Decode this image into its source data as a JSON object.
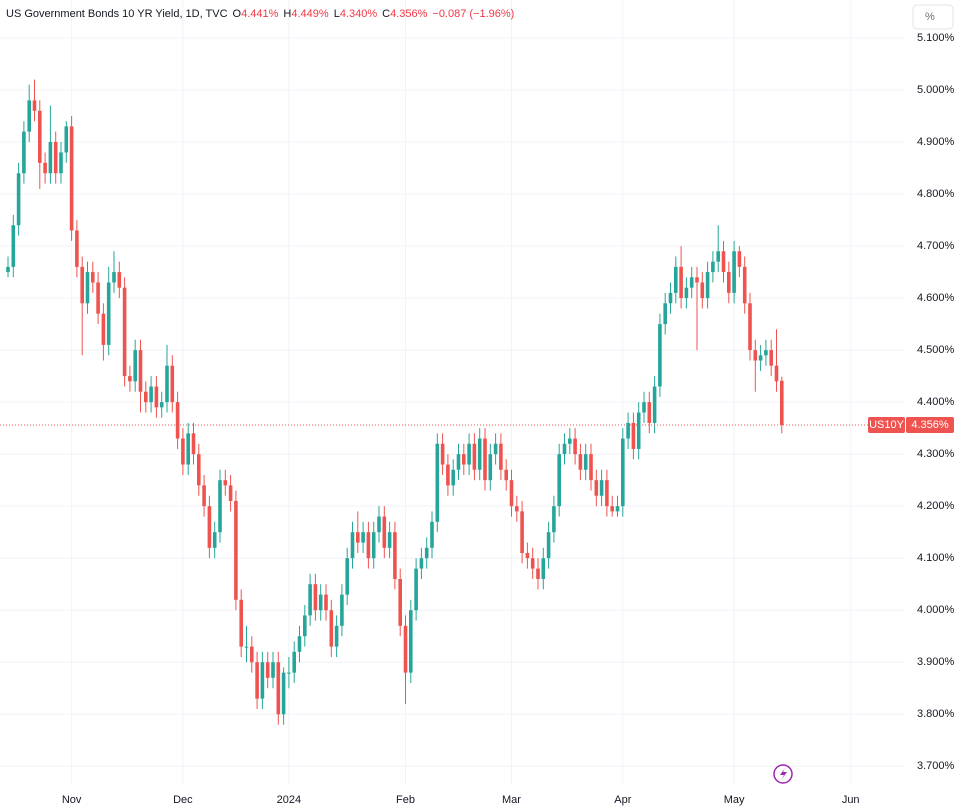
{
  "chart_data": {
    "type": "candlestick",
    "header": {
      "title": "US Government Bonds 10 YR Yield, 1D, TVC",
      "fields": [
        {
          "key": "O",
          "value": "4.441%"
        },
        {
          "key": "H",
          "value": "4.449%"
        },
        {
          "key": "L",
          "value": "4.340%"
        },
        {
          "key": "C",
          "value": "4.356%"
        }
      ],
      "change": "−0.087 (−1.96%)"
    },
    "unit_button": "%",
    "symbol_tag": "US10Y",
    "last_price_label": "4.356%",
    "up_color": "#26a69a",
    "down_color": "#ef5350",
    "grid": true,
    "ylim": [
      3.664,
      5.173
    ],
    "yticks": [
      {
        "value": 3.7,
        "label": "3.700%"
      },
      {
        "value": 3.8,
        "label": "3.800%"
      },
      {
        "value": 3.9,
        "label": "3.900%"
      },
      {
        "value": 4.0,
        "label": "4.000%"
      },
      {
        "value": 4.1,
        "label": "4.100%"
      },
      {
        "value": 4.2,
        "label": "4.200%"
      },
      {
        "value": 4.3,
        "label": "4.300%"
      },
      {
        "value": 4.4,
        "label": "4.400%"
      },
      {
        "value": 4.5,
        "label": "4.500%"
      },
      {
        "value": 4.6,
        "label": "4.600%"
      },
      {
        "value": 4.7,
        "label": "4.700%"
      },
      {
        "value": 4.8,
        "label": "4.800%"
      },
      {
        "value": 4.9,
        "label": "4.900%"
      },
      {
        "value": 5.0,
        "label": "5.000%"
      },
      {
        "value": 5.1,
        "label": "5.100%"
      }
    ],
    "categories": [
      null,
      null,
      null,
      null,
      null,
      null,
      null,
      null,
      null,
      null,
      null,
      null,
      "Nov",
      null,
      null,
      null,
      null,
      null,
      null,
      null,
      null,
      null,
      null,
      null,
      null,
      null,
      null,
      null,
      null,
      null,
      null,
      null,
      null,
      "Dec",
      null,
      null,
      null,
      null,
      null,
      null,
      null,
      null,
      null,
      null,
      null,
      null,
      null,
      null,
      null,
      null,
      null,
      null,
      null,
      "2024",
      null,
      null,
      null,
      null,
      null,
      null,
      null,
      null,
      null,
      null,
      null,
      null,
      null,
      null,
      null,
      null,
      null,
      null,
      null,
      null,
      null,
      "Feb",
      null,
      null,
      null,
      null,
      null,
      null,
      null,
      null,
      null,
      null,
      null,
      null,
      null,
      null,
      null,
      null,
      null,
      null,
      null,
      "Mar",
      null,
      null,
      null,
      null,
      null,
      null,
      null,
      null,
      null,
      null,
      null,
      null,
      null,
      null,
      null,
      null,
      null,
      null,
      null,
      null,
      "Apr",
      null,
      null,
      null,
      null,
      null,
      null,
      null,
      null,
      null,
      null,
      null,
      null,
      null,
      null,
      null,
      null,
      null,
      null,
      null,
      null,
      "May",
      null,
      null,
      null,
      null,
      null,
      null,
      null,
      null,
      null,
      null,
      null,
      null,
      null,
      null,
      null,
      null,
      null,
      null,
      null,
      null,
      null,
      "Jun"
    ],
    "ohlc": [
      [
        4.65,
        4.68,
        4.64,
        4.66
      ],
      [
        4.66,
        4.76,
        4.64,
        4.74
      ],
      [
        4.74,
        4.86,
        4.72,
        4.84
      ],
      [
        4.84,
        4.94,
        4.82,
        4.92
      ],
      [
        4.92,
        5.01,
        4.9,
        4.98
      ],
      [
        4.98,
        5.02,
        4.94,
        4.96
      ],
      [
        4.96,
        4.98,
        4.81,
        4.86
      ],
      [
        4.86,
        4.88,
        4.82,
        4.84
      ],
      [
        4.84,
        4.97,
        4.82,
        4.9
      ],
      [
        4.9,
        4.92,
        4.82,
        4.84
      ],
      [
        4.84,
        4.9,
        4.82,
        4.88
      ],
      [
        4.88,
        4.94,
        4.86,
        4.93
      ],
      [
        4.93,
        4.95,
        4.71,
        4.73
      ],
      [
        4.73,
        4.75,
        4.64,
        4.66
      ],
      [
        4.66,
        4.68,
        4.49,
        4.59
      ],
      [
        4.59,
        4.67,
        4.57,
        4.65
      ],
      [
        4.65,
        4.67,
        4.61,
        4.63
      ],
      [
        4.63,
        4.65,
        4.55,
        4.57
      ],
      [
        4.57,
        4.59,
        4.48,
        4.51
      ],
      [
        4.51,
        4.66,
        4.49,
        4.63
      ],
      [
        4.63,
        4.69,
        4.61,
        4.65
      ],
      [
        4.65,
        4.67,
        4.6,
        4.62
      ],
      [
        4.62,
        4.64,
        4.43,
        4.45
      ],
      [
        4.45,
        4.47,
        4.42,
        4.44
      ],
      [
        4.44,
        4.52,
        4.42,
        4.5
      ],
      [
        4.5,
        4.52,
        4.38,
        4.42
      ],
      [
        4.42,
        4.44,
        4.38,
        4.4
      ],
      [
        4.4,
        4.45,
        4.38,
        4.43
      ],
      [
        4.43,
        4.45,
        4.37,
        4.39
      ],
      [
        4.39,
        4.42,
        4.37,
        4.4
      ],
      [
        4.4,
        4.51,
        4.38,
        4.47
      ],
      [
        4.47,
        4.49,
        4.38,
        4.4
      ],
      [
        4.4,
        4.42,
        4.31,
        4.33
      ],
      [
        4.33,
        4.35,
        4.26,
        4.28
      ],
      [
        4.28,
        4.36,
        4.26,
        4.34
      ],
      [
        4.34,
        4.36,
        4.28,
        4.3
      ],
      [
        4.3,
        4.32,
        4.22,
        4.24
      ],
      [
        4.24,
        4.26,
        4.18,
        4.2
      ],
      [
        4.2,
        4.22,
        4.1,
        4.12
      ],
      [
        4.12,
        4.17,
        4.1,
        4.15
      ],
      [
        4.15,
        4.27,
        4.13,
        4.25
      ],
      [
        4.25,
        4.27,
        4.22,
        4.24
      ],
      [
        4.24,
        4.26,
        4.19,
        4.21
      ],
      [
        4.21,
        4.23,
        4.0,
        4.02
      ],
      [
        4.02,
        4.04,
        3.91,
        3.93
      ],
      [
        3.93,
        3.97,
        3.9,
        3.93
      ],
      [
        3.93,
        3.95,
        3.88,
        3.9
      ],
      [
        3.9,
        3.92,
        3.81,
        3.83
      ],
      [
        3.83,
        3.92,
        3.81,
        3.9
      ],
      [
        3.9,
        3.92,
        3.85,
        3.87
      ],
      [
        3.87,
        3.92,
        3.85,
        3.9
      ],
      [
        3.9,
        3.92,
        3.78,
        3.8
      ],
      [
        3.8,
        3.89,
        3.78,
        3.88
      ],
      [
        3.88,
        3.91,
        3.85,
        3.88
      ],
      [
        3.88,
        3.94,
        3.86,
        3.92
      ],
      [
        3.92,
        3.97,
        3.9,
        3.95
      ],
      [
        3.95,
        4.01,
        3.93,
        3.99
      ],
      [
        3.99,
        4.07,
        3.97,
        4.05
      ],
      [
        4.05,
        4.07,
        3.98,
        4.0
      ],
      [
        4.0,
        4.05,
        3.98,
        4.03
      ],
      [
        4.03,
        4.05,
        3.98,
        4.0
      ],
      [
        4.0,
        4.02,
        3.91,
        3.93
      ],
      [
        3.93,
        3.99,
        3.91,
        3.97
      ],
      [
        3.97,
        4.05,
        3.95,
        4.03
      ],
      [
        4.03,
        4.12,
        4.01,
        4.1
      ],
      [
        4.1,
        4.17,
        4.08,
        4.15
      ],
      [
        4.15,
        4.19,
        4.11,
        4.13
      ],
      [
        4.13,
        4.17,
        4.11,
        4.15
      ],
      [
        4.15,
        4.17,
        4.08,
        4.1
      ],
      [
        4.1,
        4.17,
        4.08,
        4.15
      ],
      [
        4.15,
        4.2,
        4.13,
        4.18
      ],
      [
        4.18,
        4.2,
        4.1,
        4.12
      ],
      [
        4.12,
        4.17,
        4.1,
        4.15
      ],
      [
        4.15,
        4.17,
        4.04,
        4.06
      ],
      [
        4.06,
        4.08,
        3.95,
        3.97
      ],
      [
        3.97,
        3.99,
        3.82,
        3.88
      ],
      [
        3.88,
        4.02,
        3.86,
        4.0
      ],
      [
        4.0,
        4.1,
        3.98,
        4.08
      ],
      [
        4.08,
        4.12,
        4.06,
        4.1
      ],
      [
        4.1,
        4.14,
        4.08,
        4.12
      ],
      [
        4.12,
        4.19,
        4.1,
        4.17
      ],
      [
        4.17,
        4.34,
        4.15,
        4.32
      ],
      [
        4.32,
        4.34,
        4.26,
        4.28
      ],
      [
        4.28,
        4.3,
        4.22,
        4.24
      ],
      [
        4.24,
        4.29,
        4.22,
        4.27
      ],
      [
        4.27,
        4.32,
        4.25,
        4.3
      ],
      [
        4.3,
        4.32,
        4.26,
        4.28
      ],
      [
        4.28,
        4.34,
        4.26,
        4.32
      ],
      [
        4.32,
        4.34,
        4.25,
        4.27
      ],
      [
        4.27,
        4.35,
        4.25,
        4.33
      ],
      [
        4.33,
        4.35,
        4.23,
        4.25
      ],
      [
        4.25,
        4.32,
        4.23,
        4.3
      ],
      [
        4.3,
        4.34,
        4.28,
        4.32
      ],
      [
        4.32,
        4.34,
        4.25,
        4.27
      ],
      [
        4.27,
        4.29,
        4.23,
        4.25
      ],
      [
        4.25,
        4.27,
        4.18,
        4.2
      ],
      [
        4.2,
        4.22,
        4.17,
        4.19
      ],
      [
        4.19,
        4.21,
        4.09,
        4.11
      ],
      [
        4.11,
        4.13,
        4.08,
        4.1
      ],
      [
        4.1,
        4.12,
        4.06,
        4.08
      ],
      [
        4.08,
        4.1,
        4.04,
        4.06
      ],
      [
        4.06,
        4.12,
        4.04,
        4.1
      ],
      [
        4.1,
        4.17,
        4.08,
        4.15
      ],
      [
        4.15,
        4.22,
        4.13,
        4.2
      ],
      [
        4.2,
        4.32,
        4.18,
        4.3
      ],
      [
        4.3,
        4.34,
        4.28,
        4.32
      ],
      [
        4.32,
        4.35,
        4.3,
        4.33
      ],
      [
        4.33,
        4.35,
        4.28,
        4.3
      ],
      [
        4.3,
        4.32,
        4.25,
        4.27
      ],
      [
        4.27,
        4.32,
        4.25,
        4.3
      ],
      [
        4.3,
        4.32,
        4.23,
        4.25
      ],
      [
        4.25,
        4.27,
        4.2,
        4.22
      ],
      [
        4.22,
        4.27,
        4.2,
        4.25
      ],
      [
        4.25,
        4.27,
        4.18,
        4.2
      ],
      [
        4.2,
        4.22,
        4.18,
        4.19
      ],
      [
        4.19,
        4.22,
        4.18,
        4.2
      ],
      [
        4.2,
        4.35,
        4.18,
        4.33
      ],
      [
        4.33,
        4.38,
        4.31,
        4.36
      ],
      [
        4.36,
        4.38,
        4.29,
        4.31
      ],
      [
        4.31,
        4.4,
        4.29,
        4.38
      ],
      [
        4.38,
        4.42,
        4.36,
        4.4
      ],
      [
        4.4,
        4.42,
        4.34,
        4.36
      ],
      [
        4.36,
        4.45,
        4.34,
        4.43
      ],
      [
        4.43,
        4.57,
        4.41,
        4.55
      ],
      [
        4.55,
        4.61,
        4.53,
        4.59
      ],
      [
        4.59,
        4.63,
        4.57,
        4.61
      ],
      [
        4.61,
        4.68,
        4.59,
        4.66
      ],
      [
        4.66,
        4.7,
        4.58,
        4.6
      ],
      [
        4.6,
        4.64,
        4.58,
        4.62
      ],
      [
        4.62,
        4.66,
        4.6,
        4.64
      ],
      [
        4.64,
        4.66,
        4.5,
        4.63
      ],
      [
        4.63,
        4.65,
        4.58,
        4.6
      ],
      [
        4.6,
        4.67,
        4.58,
        4.65
      ],
      [
        4.65,
        4.69,
        4.63,
        4.67
      ],
      [
        4.67,
        4.74,
        4.65,
        4.69
      ],
      [
        4.69,
        4.71,
        4.63,
        4.65
      ],
      [
        4.65,
        4.67,
        4.59,
        4.61
      ],
      [
        4.61,
        4.71,
        4.59,
        4.69
      ],
      [
        4.69,
        4.7,
        4.64,
        4.66
      ],
      [
        4.66,
        4.68,
        4.57,
        4.59
      ],
      [
        4.59,
        4.61,
        4.48,
        4.5
      ],
      [
        4.5,
        4.52,
        4.42,
        4.48
      ],
      [
        4.48,
        4.51,
        4.46,
        4.49
      ],
      [
        4.49,
        4.52,
        4.47,
        4.5
      ],
      [
        4.5,
        4.52,
        4.45,
        4.47
      ],
      [
        4.47,
        4.54,
        4.42,
        4.44
      ],
      [
        4.441,
        4.449,
        4.34,
        4.356
      ],
      null,
      null,
      null,
      null,
      null,
      null,
      null,
      null,
      null,
      null,
      null,
      null,
      null
    ]
  }
}
